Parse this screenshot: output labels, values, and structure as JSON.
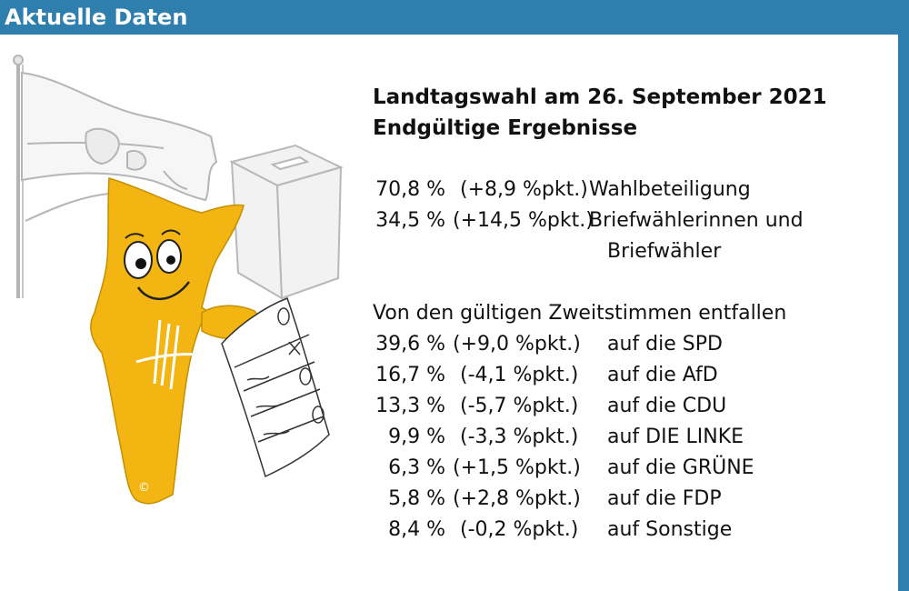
{
  "header": {
    "title": "Aktuelle Daten"
  },
  "colors": {
    "header_bg": "#2e7fae",
    "mascot_yellow": "#f3b512",
    "text": "#111111"
  },
  "illustration": {
    "icons": [
      "flag-icon",
      "ballot-box-icon",
      "mascot-icon",
      "ballot-paper-icon"
    ],
    "copyright": "©"
  },
  "main": {
    "title": "Landtagswahl am 26. September 2021",
    "subtitle": "Endgültige Ergebnisse",
    "turnout": [
      {
        "percent": "70,8 %",
        "change": "(+8,9 %pkt.)",
        "label": "Wahlbeteiligung"
      },
      {
        "percent": "34,5 %",
        "change": "(+14,5 %pkt.)",
        "label": "Briefwählerinnen und",
        "label2": "Briefwähler"
      }
    ],
    "votes_intro": "Von den gültigen Zweitstimmen entfallen",
    "parties": [
      {
        "percent": "39,6 %",
        "change": "(+9,0 %pkt.)",
        "party": "auf die SPD"
      },
      {
        "percent": "16,7 %",
        "change": "(-4,1 %pkt.)",
        "party": "auf die AfD"
      },
      {
        "percent": "13,3 %",
        "change": "(-5,7 %pkt.)",
        "party": "auf die CDU"
      },
      {
        "percent": "9,9 %",
        "change": "(-3,3 %pkt.)",
        "party": "auf DIE LINKE"
      },
      {
        "percent": "6,3 %",
        "change": "(+1,5 %pkt.)",
        "party": "auf die GRÜNE"
      },
      {
        "percent": "5,8 %",
        "change": "(+2,8 %pkt.)",
        "party": "auf die FDP"
      },
      {
        "percent": "8,4 %",
        "change": "(-0,2 %pkt.)",
        "party": "auf Sonstige"
      }
    ]
  }
}
